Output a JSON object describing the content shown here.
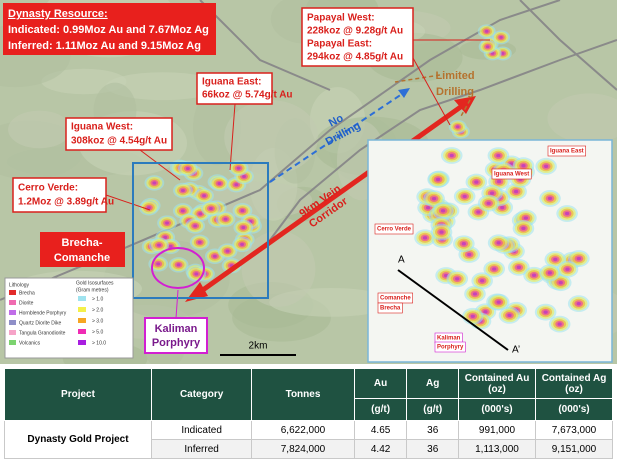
{
  "map": {
    "resource": {
      "title": "Dynasty Resource:",
      "lines": [
        "Indicated: 0.99Moz Au and 7.67Moz Ag",
        "Inferred: 1.11Moz Au and 9.15Moz Ag"
      ]
    },
    "callouts": {
      "papayal": [
        "Papayal West:",
        "228koz @ 9.28g/t Au",
        "Papayal East:",
        "294koz @ 4.85g/t Au"
      ],
      "iguana_east": [
        "Iguana East:",
        "66koz @ 5.74g/t Au"
      ],
      "iguana_west": [
        "Iguana West:",
        "308koz @ 4.54g/t Au"
      ],
      "cerro_verde": [
        "Cerro Verde:",
        "1.2Moz @ 3.89g/t Au"
      ]
    },
    "limited_drilling": [
      "Limited",
      "Drilling"
    ],
    "no_drilling": [
      "No",
      "Drilling"
    ],
    "corridor": [
      "9km Vein",
      "Corridor"
    ],
    "brecha": [
      "Brecha-",
      "Comanche"
    ],
    "kaliman": [
      "Kaliman",
      "Porphyry"
    ],
    "legend": {
      "lithology_title": "Lithology",
      "lithology": [
        "Brecha",
        "Diorite",
        "Hornblende Porphyry",
        "Quartz Diorite Dike",
        "Tangula Granodiorite",
        "Volcanics"
      ],
      "isosurface_title": [
        "Gold Isosurfaces",
        "(Gram metres)"
      ],
      "isosurfaces": [
        "> 1.0",
        "> 2.0",
        "> 3.0",
        "> 5.0",
        "> 10.0"
      ]
    },
    "scale": "2km",
    "inset": {
      "labels": [
        "Iguana East",
        "Iguana West",
        "Cerro Verde",
        "Comanche",
        "Brecha",
        "Kaliman",
        "Porphyry"
      ],
      "section": [
        "A",
        "A’"
      ]
    }
  },
  "table": {
    "headers": [
      "Project",
      "Category",
      "Tonnes",
      "Au",
      "Ag",
      "Contained Au (oz)",
      "Contained Ag (oz)"
    ],
    "units": [
      "(g/t)",
      "(g/t)",
      "(000's)",
      "(000's)"
    ],
    "project": "Dynasty Gold Project",
    "rows": [
      [
        "Indicated",
        "6,622,000",
        "4.65",
        "36",
        "991,000",
        "7,673,000"
      ],
      [
        "Inferred",
        "7,824,000",
        "4.42",
        "36",
        "1,113,000",
        "9,151,000"
      ]
    ]
  }
}
